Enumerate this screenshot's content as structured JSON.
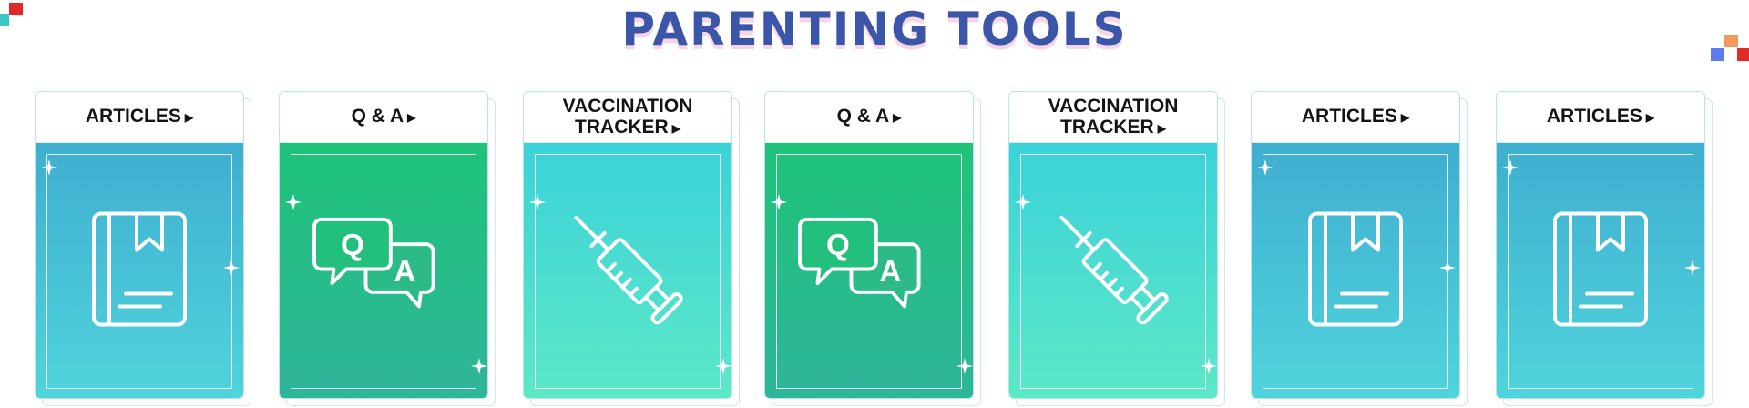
{
  "page": {
    "title": "PARENTING TOOLS"
  },
  "colors": {
    "title": "#3b55a8",
    "title_shadow": "#f6d6e6",
    "articles_gradient": [
      "#3faed0",
      "#50d4dc"
    ],
    "qa_gradient": [
      "#1fc379",
      "#2fb59a"
    ],
    "vaccine_gradient": [
      "#3bd2da",
      "#5de8c6"
    ]
  },
  "cards": [
    {
      "type": "articles",
      "label": "ARTICLES",
      "icon": "book-icon"
    },
    {
      "type": "qa",
      "label": "Q & A",
      "icon": "qa-bubbles-icon",
      "q": "Q",
      "a": "A"
    },
    {
      "type": "vaccine",
      "label": "VACCINATION\nTRACKER",
      "icon": "syringe-icon"
    },
    {
      "type": "qa",
      "label": "Q & A",
      "icon": "qa-bubbles-icon",
      "q": "Q",
      "a": "A"
    },
    {
      "type": "vaccine",
      "label": "VACCINATION\nTRACKER",
      "icon": "syringe-icon"
    },
    {
      "type": "articles",
      "label": "ARTICLES",
      "icon": "book-icon"
    },
    {
      "type": "articles",
      "label": "ARTICLES",
      "icon": "book-icon"
    }
  ],
  "arrow_glyph": "▶"
}
